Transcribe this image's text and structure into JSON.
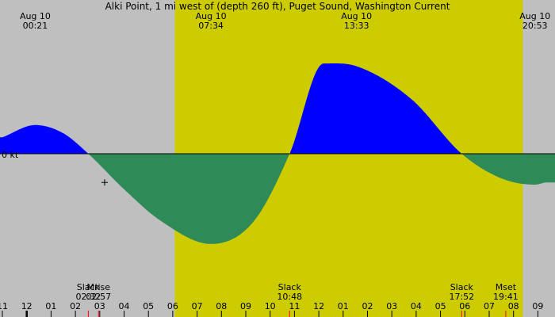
{
  "chart_data": {
    "type": "area",
    "title": "Alki Point, 1 mi west of (depth 260 ft), Puget Sound, Washington Current",
    "y_axis_label": "0 kt",
    "x_range_hours": [
      -1,
      33.2
    ],
    "daylight_hours": [
      6.08,
      20.38
    ],
    "colors": {
      "night": "#bfbfbf",
      "day": "#cccc00",
      "flood": "#0000ff",
      "ebb": "#2e8b57",
      "tick_red": "#ff0000",
      "axis": "#000000"
    },
    "events_top": [
      {
        "date": "Aug 10",
        "time": "00:21",
        "hour": 0.35
      },
      {
        "date": "Aug 10",
        "time": "07:34",
        "hour": 7.57
      },
      {
        "date": "Aug 10",
        "time": "13:33",
        "hour": 13.55
      },
      {
        "date": "Aug 10",
        "time": "20:53",
        "hour": 20.88
      }
    ],
    "events_bottom": [
      {
        "label": "Slack",
        "time": "02:32",
        "hour": 2.53
      },
      {
        "label": "Mrise",
        "time": "02:57",
        "hour": 2.95
      },
      {
        "label": "Slack",
        "time": "10:48",
        "hour": 10.8
      },
      {
        "label": "Slack",
        "time": "17:52",
        "hour": 17.87
      },
      {
        "label": "Mset",
        "time": "19:41",
        "hour": 19.68
      }
    ],
    "hour_ticks": [
      {
        "label": "11",
        "hour": -1
      },
      {
        "label": "12",
        "hour": 0
      },
      {
        "label": "01",
        "hour": 1
      },
      {
        "label": "02",
        "hour": 2
      },
      {
        "label": "03",
        "hour": 3
      },
      {
        "label": "04",
        "hour": 4
      },
      {
        "label": "05",
        "hour": 5
      },
      {
        "label": "06",
        "hour": 6
      },
      {
        "label": "07",
        "hour": 7
      },
      {
        "label": "08",
        "hour": 8
      },
      {
        "label": "09",
        "hour": 9
      },
      {
        "label": "10",
        "hour": 10
      },
      {
        "label": "11",
        "hour": 11
      },
      {
        "label": "12",
        "hour": 12
      },
      {
        "label": "01",
        "hour": 13
      },
      {
        "label": "02",
        "hour": 14
      },
      {
        "label": "03",
        "hour": 15
      },
      {
        "label": "04",
        "hour": 16
      },
      {
        "label": "05",
        "hour": 17
      },
      {
        "label": "06",
        "hour": 18
      },
      {
        "label": "07",
        "hour": 19
      },
      {
        "label": "08",
        "hour": 20
      },
      {
        "label": "09",
        "hour": 21
      }
    ],
    "current_knots": [
      {
        "hour": -1.0,
        "kt": 0.6
      },
      {
        "hour": 0.35,
        "kt": 1.05
      },
      {
        "hour": 1.5,
        "kt": 0.75
      },
      {
        "hour": 2.53,
        "kt": 0.0
      },
      {
        "hour": 4.0,
        "kt": -1.3
      },
      {
        "hour": 5.5,
        "kt": -2.45
      },
      {
        "hour": 7.57,
        "kt": -3.3
      },
      {
        "hour": 9.3,
        "kt": -2.5
      },
      {
        "hour": 10.8,
        "kt": 0.0
      },
      {
        "hour": 12.2,
        "kt": 3.3
      },
      {
        "hour": 13.55,
        "kt": 3.2
      },
      {
        "hour": 15.8,
        "kt": 2.0
      },
      {
        "hour": 17.87,
        "kt": 0.0
      },
      {
        "hour": 19.5,
        "kt": -0.9
      },
      {
        "hour": 20.88,
        "kt": -1.13
      },
      {
        "hour": 21.3,
        "kt": -1.05
      }
    ],
    "cursor_mark": {
      "hour": 3.2,
      "kt": -1.05
    }
  }
}
